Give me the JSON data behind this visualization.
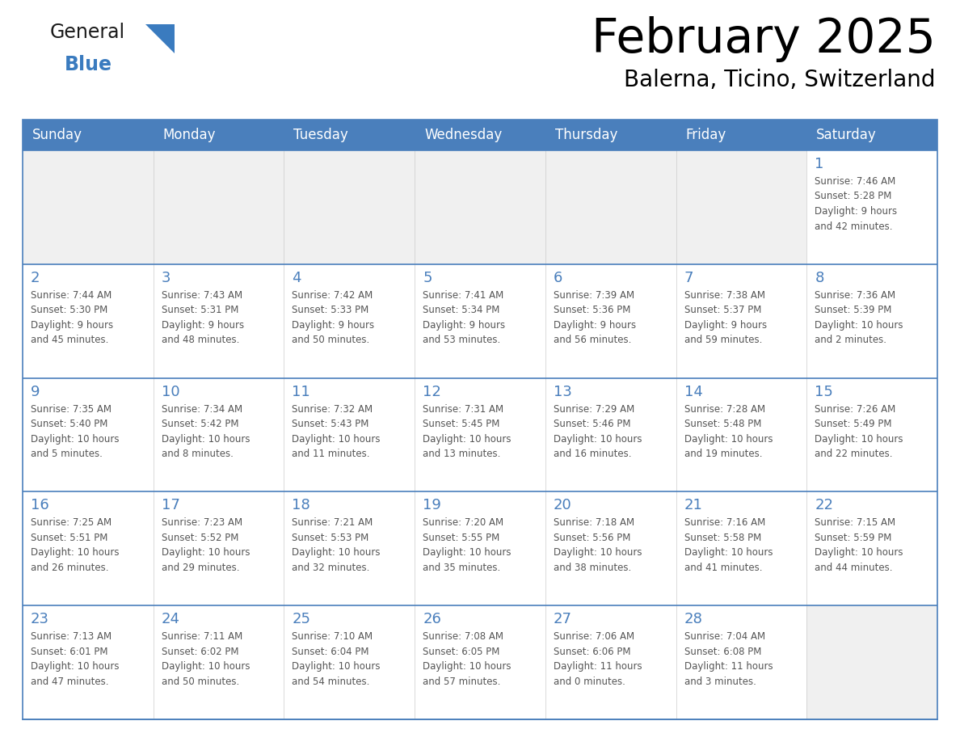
{
  "title": "February 2025",
  "subtitle": "Balerna, Ticino, Switzerland",
  "header_bg": "#4a7fbc",
  "header_text_color": "#ffffff",
  "cell_bg_empty": "#f0f0f0",
  "cell_bg_filled": "#ffffff",
  "cell_border_color": "#4a7fbc",
  "day_number_color": "#4a7fbc",
  "info_text_color": "#555555",
  "logo_general_color": "#1a1a1a",
  "logo_blue_color": "#3a7bbf",
  "days_of_week": [
    "Sunday",
    "Monday",
    "Tuesday",
    "Wednesday",
    "Thursday",
    "Friday",
    "Saturday"
  ],
  "calendar_data": [
    [
      {
        "day": null,
        "info": ""
      },
      {
        "day": null,
        "info": ""
      },
      {
        "day": null,
        "info": ""
      },
      {
        "day": null,
        "info": ""
      },
      {
        "day": null,
        "info": ""
      },
      {
        "day": null,
        "info": ""
      },
      {
        "day": 1,
        "info": "Sunrise: 7:46 AM\nSunset: 5:28 PM\nDaylight: 9 hours\nand 42 minutes."
      }
    ],
    [
      {
        "day": 2,
        "info": "Sunrise: 7:44 AM\nSunset: 5:30 PM\nDaylight: 9 hours\nand 45 minutes."
      },
      {
        "day": 3,
        "info": "Sunrise: 7:43 AM\nSunset: 5:31 PM\nDaylight: 9 hours\nand 48 minutes."
      },
      {
        "day": 4,
        "info": "Sunrise: 7:42 AM\nSunset: 5:33 PM\nDaylight: 9 hours\nand 50 minutes."
      },
      {
        "day": 5,
        "info": "Sunrise: 7:41 AM\nSunset: 5:34 PM\nDaylight: 9 hours\nand 53 minutes."
      },
      {
        "day": 6,
        "info": "Sunrise: 7:39 AM\nSunset: 5:36 PM\nDaylight: 9 hours\nand 56 minutes."
      },
      {
        "day": 7,
        "info": "Sunrise: 7:38 AM\nSunset: 5:37 PM\nDaylight: 9 hours\nand 59 minutes."
      },
      {
        "day": 8,
        "info": "Sunrise: 7:36 AM\nSunset: 5:39 PM\nDaylight: 10 hours\nand 2 minutes."
      }
    ],
    [
      {
        "day": 9,
        "info": "Sunrise: 7:35 AM\nSunset: 5:40 PM\nDaylight: 10 hours\nand 5 minutes."
      },
      {
        "day": 10,
        "info": "Sunrise: 7:34 AM\nSunset: 5:42 PM\nDaylight: 10 hours\nand 8 minutes."
      },
      {
        "day": 11,
        "info": "Sunrise: 7:32 AM\nSunset: 5:43 PM\nDaylight: 10 hours\nand 11 minutes."
      },
      {
        "day": 12,
        "info": "Sunrise: 7:31 AM\nSunset: 5:45 PM\nDaylight: 10 hours\nand 13 minutes."
      },
      {
        "day": 13,
        "info": "Sunrise: 7:29 AM\nSunset: 5:46 PM\nDaylight: 10 hours\nand 16 minutes."
      },
      {
        "day": 14,
        "info": "Sunrise: 7:28 AM\nSunset: 5:48 PM\nDaylight: 10 hours\nand 19 minutes."
      },
      {
        "day": 15,
        "info": "Sunrise: 7:26 AM\nSunset: 5:49 PM\nDaylight: 10 hours\nand 22 minutes."
      }
    ],
    [
      {
        "day": 16,
        "info": "Sunrise: 7:25 AM\nSunset: 5:51 PM\nDaylight: 10 hours\nand 26 minutes."
      },
      {
        "day": 17,
        "info": "Sunrise: 7:23 AM\nSunset: 5:52 PM\nDaylight: 10 hours\nand 29 minutes."
      },
      {
        "day": 18,
        "info": "Sunrise: 7:21 AM\nSunset: 5:53 PM\nDaylight: 10 hours\nand 32 minutes."
      },
      {
        "day": 19,
        "info": "Sunrise: 7:20 AM\nSunset: 5:55 PM\nDaylight: 10 hours\nand 35 minutes."
      },
      {
        "day": 20,
        "info": "Sunrise: 7:18 AM\nSunset: 5:56 PM\nDaylight: 10 hours\nand 38 minutes."
      },
      {
        "day": 21,
        "info": "Sunrise: 7:16 AM\nSunset: 5:58 PM\nDaylight: 10 hours\nand 41 minutes."
      },
      {
        "day": 22,
        "info": "Sunrise: 7:15 AM\nSunset: 5:59 PM\nDaylight: 10 hours\nand 44 minutes."
      }
    ],
    [
      {
        "day": 23,
        "info": "Sunrise: 7:13 AM\nSunset: 6:01 PM\nDaylight: 10 hours\nand 47 minutes."
      },
      {
        "day": 24,
        "info": "Sunrise: 7:11 AM\nSunset: 6:02 PM\nDaylight: 10 hours\nand 50 minutes."
      },
      {
        "day": 25,
        "info": "Sunrise: 7:10 AM\nSunset: 6:04 PM\nDaylight: 10 hours\nand 54 minutes."
      },
      {
        "day": 26,
        "info": "Sunrise: 7:08 AM\nSunset: 6:05 PM\nDaylight: 10 hours\nand 57 minutes."
      },
      {
        "day": 27,
        "info": "Sunrise: 7:06 AM\nSunset: 6:06 PM\nDaylight: 11 hours\nand 0 minutes."
      },
      {
        "day": 28,
        "info": "Sunrise: 7:04 AM\nSunset: 6:08 PM\nDaylight: 11 hours\nand 3 minutes."
      },
      {
        "day": null,
        "info": ""
      }
    ]
  ]
}
